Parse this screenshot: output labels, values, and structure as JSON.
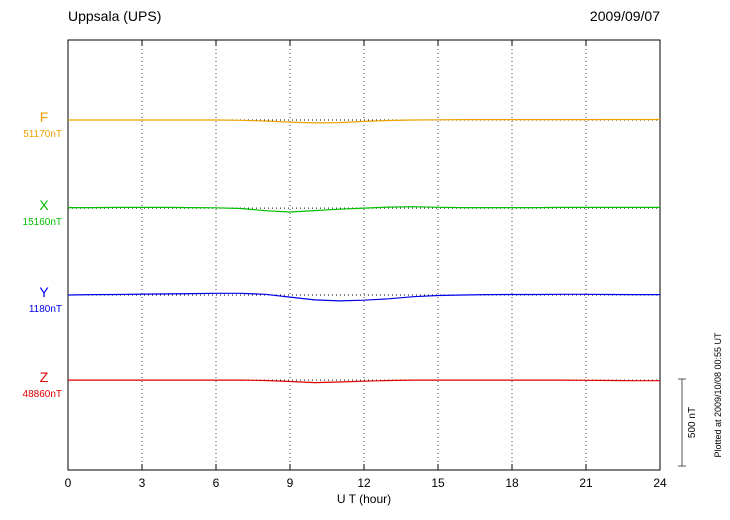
{
  "header": {
    "title": "Uppsala (UPS)",
    "date": "2009/09/07"
  },
  "chart_data": {
    "type": "line",
    "title": "Uppsala (UPS)",
    "date": "2009/09/07",
    "xlabel": "U T (hour)",
    "x_range": [
      0,
      24
    ],
    "x_ticks": [
      0,
      3,
      6,
      9,
      12,
      15,
      18,
      21,
      24
    ],
    "grid": "vertical dotted lines at 3-hour intervals, dotted horizontal baseline per component",
    "legend_position": "left labels per trace",
    "scale_bar": {
      "label": "500 nT",
      "nT": 500
    },
    "plotted_note": "Plotted at 2009/10/08 00:55 UT",
    "series": [
      {
        "name": "F",
        "color": "#F0A000",
        "base_label": "51170nT",
        "baseline_nT": 51170,
        "baseline_frac": 0.186,
        "deviations_nT": [
          0,
          0,
          0,
          0,
          0,
          0,
          0,
          -2,
          -6,
          -12,
          -17,
          -15,
          -8,
          -3,
          0,
          1,
          2,
          2,
          2,
          2,
          2,
          2,
          3,
          3,
          3
        ]
      },
      {
        "name": "X",
        "color": "#00C000",
        "base_label": "15160nT",
        "baseline_nT": 15160,
        "baseline_frac": 0.391,
        "deviations_nT": [
          3,
          3,
          4,
          4,
          4,
          3,
          2,
          -2,
          -15,
          -22,
          -14,
          -6,
          0,
          6,
          8,
          5,
          3,
          3,
          3,
          3,
          4,
          4,
          4,
          4,
          4
        ]
      },
      {
        "name": "Y",
        "color": "#0000E8",
        "base_label": "1180nT",
        "baseline_nT": 1180,
        "baseline_frac": 0.593,
        "deviations_nT": [
          0,
          2,
          3,
          5,
          6,
          8,
          10,
          10,
          4,
          -12,
          -28,
          -34,
          -30,
          -22,
          -10,
          -3,
          0,
          2,
          3,
          3,
          4,
          4,
          3,
          2,
          2
        ]
      },
      {
        "name": "Z",
        "color": "#E00000",
        "base_label": "48860nT",
        "baseline_nT": 48860,
        "baseline_frac": 0.791,
        "deviations_nT": [
          0,
          0,
          0,
          0,
          0,
          0,
          0,
          0,
          -2,
          -8,
          -14,
          -11,
          -6,
          -2,
          0,
          0,
          0,
          0,
          0,
          0,
          0,
          -1,
          -2,
          -3,
          -3
        ]
      }
    ]
  }
}
